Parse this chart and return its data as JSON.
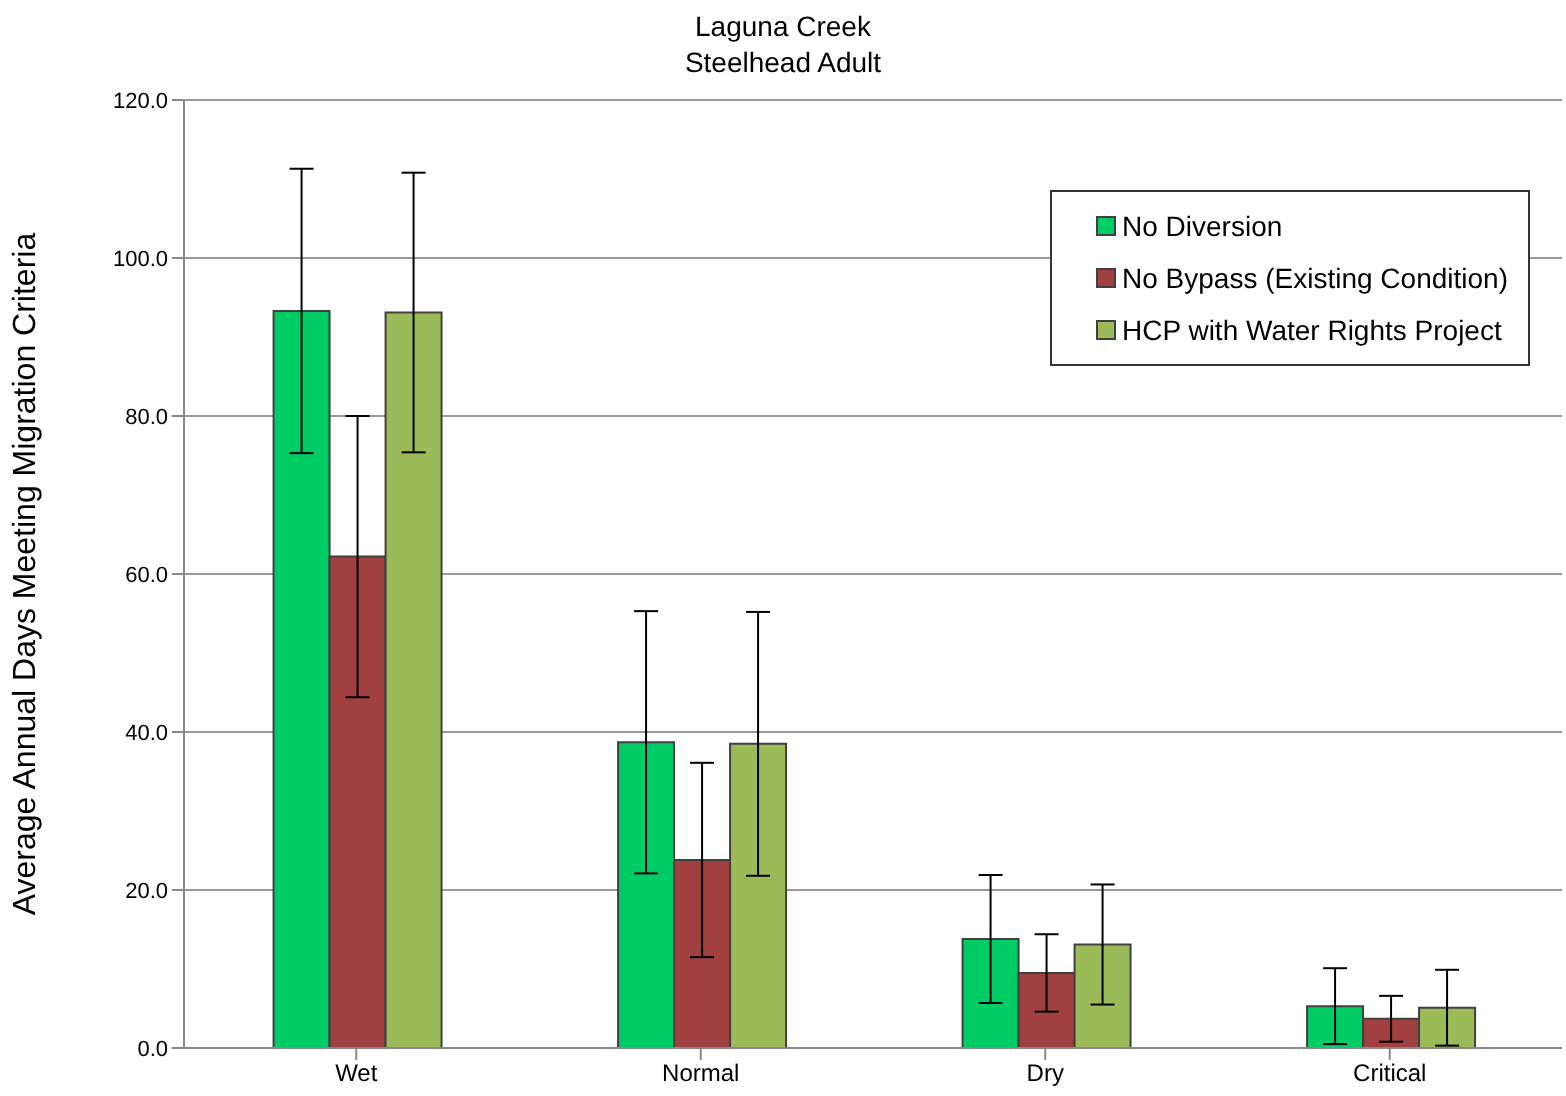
{
  "chart_data": {
    "type": "bar",
    "title": "Laguna Creek\nSteelhead Adult",
    "ylabel": "Average Annual Days Meeting Migration Criteria",
    "categories": [
      "Wet",
      "Normal",
      "Dry",
      "Critical"
    ],
    "series": [
      {
        "name": "No Diversion",
        "color": "#00cc66",
        "values": [
          93.3,
          38.7,
          13.8,
          5.3
        ],
        "errors": [
          18,
          16.6,
          8.1,
          4.8
        ]
      },
      {
        "name": "No Bypass (Existing Condition)",
        "color": "#a04040",
        "values": [
          62.2,
          23.8,
          9.5,
          3.7
        ],
        "errors": [
          17.8,
          12.3,
          4.9,
          2.9
        ]
      },
      {
        "name": "HCP with Water Rights Project",
        "color": "#9bbb59",
        "values": [
          93.1,
          38.5,
          13.1,
          5.1
        ],
        "errors": [
          17.7,
          16.7,
          7.6,
          4.8
        ]
      }
    ],
    "ylim": [
      0,
      120
    ],
    "yticks": [
      {
        "value": 0,
        "label": "0.0"
      },
      {
        "value": 20,
        "label": "20.0"
      },
      {
        "value": 40,
        "label": "40.0"
      },
      {
        "value": 60,
        "label": "60.0"
      },
      {
        "value": 80,
        "label": "80.0"
      },
      {
        "value": 100,
        "label": "100.0"
      },
      {
        "value": 120,
        "label": "120.0"
      }
    ],
    "grid": "y",
    "legend": "top right"
  }
}
